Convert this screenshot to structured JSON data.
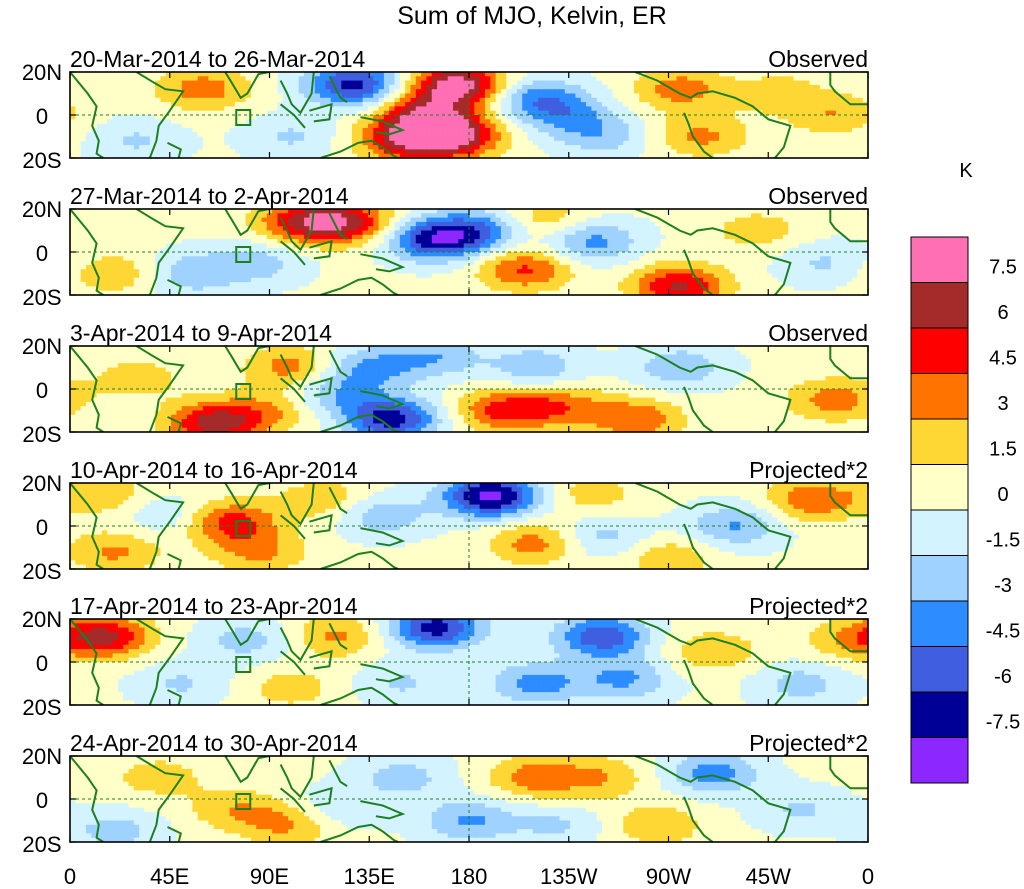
{
  "chart_data": {
    "type": "heatmap",
    "title": "Sum of MJO, Kelvin, ER",
    "colorbar": {
      "unit": "K",
      "levels": [
        "7.5",
        "6",
        "4.5",
        "3",
        "1.5",
        "0",
        "-1.5",
        "-3",
        "-4.5",
        "-6",
        "-7.5"
      ],
      "colors": [
        "#ff6fb4",
        "#a52a2a",
        "#ff0000",
        "#ff7300",
        "#ffd735",
        "#ffffc8",
        "#d2f3ff",
        "#a0d2ff",
        "#2d8cff",
        "#3f5fe0",
        "#000096",
        "#8c28ff"
      ]
    },
    "x_ticks": [
      "0",
      "45E",
      "90E",
      "135E",
      "180",
      "135W",
      "90W",
      "45W",
      "0"
    ],
    "y_ticks": [
      "20N",
      "0",
      "20S"
    ],
    "panels": [
      {
        "period": "20-Mar-2014 to 26-Mar-2014",
        "label": "Observed",
        "blobs": [
          {
            "lon": 175,
            "lat": 14,
            "v": 8.2
          },
          {
            "lon": 172,
            "lat": -10,
            "v": 7.5
          },
          {
            "lon": 160,
            "lat": 0,
            "v": 6.0
          },
          {
            "lon": 150,
            "lat": -12,
            "v": 5.0
          },
          {
            "lon": 128,
            "lat": 14,
            "v": -7.0
          },
          {
            "lon": 210,
            "lat": 8,
            "v": -4.0
          },
          {
            "lon": 225,
            "lat": 0,
            "v": -3.0
          },
          {
            "lon": 60,
            "lat": 12,
            "v": 3.5
          },
          {
            "lon": 275,
            "lat": 12,
            "v": 3.5
          },
          {
            "lon": 285,
            "lat": -10,
            "v": 3.0
          },
          {
            "lon": 345,
            "lat": 0,
            "v": 2.5
          },
          {
            "lon": 30,
            "lat": -12,
            "v": -2.0
          },
          {
            "lon": 100,
            "lat": -10,
            "v": -2.0
          },
          {
            "lon": 240,
            "lat": -10,
            "v": -2.5
          },
          {
            "lon": 320,
            "lat": 10,
            "v": 2.0
          }
        ]
      },
      {
        "period": "27-Mar-2014 to 2-Apr-2014",
        "label": "Observed",
        "blobs": [
          {
            "lon": 105,
            "lat": 14,
            "v": 5.0
          },
          {
            "lon": 125,
            "lat": 14,
            "v": 5.5
          },
          {
            "lon": 165,
            "lat": 6,
            "v": -7.0
          },
          {
            "lon": 205,
            "lat": -8,
            "v": 4.5
          },
          {
            "lon": 275,
            "lat": -16,
            "v": 6.0
          },
          {
            "lon": 55,
            "lat": -10,
            "v": -3.0
          },
          {
            "lon": 185,
            "lat": 10,
            "v": -4.0
          },
          {
            "lon": 235,
            "lat": 5,
            "v": -4.0
          },
          {
            "lon": 215,
            "lat": 15,
            "v": 2.5
          },
          {
            "lon": 310,
            "lat": 10,
            "v": 2.0
          },
          {
            "lon": 85,
            "lat": -5,
            "v": -2.5
          },
          {
            "lon": 20,
            "lat": -10,
            "v": 2.5
          },
          {
            "lon": 340,
            "lat": -5,
            "v": -2.0
          }
        ]
      },
      {
        "period": "3-Apr-2014 to 9-Apr-2014",
        "label": "Observed",
        "blobs": [
          {
            "lon": 65,
            "lat": -16,
            "v": 6.5
          },
          {
            "lon": 145,
            "lat": -14,
            "v": -7.0
          },
          {
            "lon": 195,
            "lat": -10,
            "v": 4.5
          },
          {
            "lon": 220,
            "lat": -8,
            "v": 3.5
          },
          {
            "lon": 255,
            "lat": -14,
            "v": 4.0
          },
          {
            "lon": 100,
            "lat": 10,
            "v": 3.5
          },
          {
            "lon": 135,
            "lat": 10,
            "v": -3.5
          },
          {
            "lon": 165,
            "lat": 15,
            "v": -3.0
          },
          {
            "lon": 210,
            "lat": 10,
            "v": -3.0
          },
          {
            "lon": 275,
            "lat": 10,
            "v": -3.0
          },
          {
            "lon": 345,
            "lat": -5,
            "v": 3.5
          },
          {
            "lon": 30,
            "lat": 5,
            "v": 2.0
          },
          {
            "lon": 90,
            "lat": -10,
            "v": 2.5
          },
          {
            "lon": 120,
            "lat": -2,
            "v": -3.0
          }
        ]
      },
      {
        "period": "10-Apr-2014 to 16-Apr-2014",
        "label": "Projected*2",
        "blobs": [
          {
            "lon": 190,
            "lat": 14,
            "v": -8.5
          },
          {
            "lon": 72,
            "lat": 2,
            "v": 5.0
          },
          {
            "lon": 20,
            "lat": -12,
            "v": 3.0
          },
          {
            "lon": 85,
            "lat": -12,
            "v": 3.0
          },
          {
            "lon": 115,
            "lat": 12,
            "v": 2.5
          },
          {
            "lon": 210,
            "lat": -8,
            "v": 3.5
          },
          {
            "lon": 235,
            "lat": 15,
            "v": 2.0
          },
          {
            "lon": 335,
            "lat": 12,
            "v": 4.0
          },
          {
            "lon": 140,
            "lat": 5,
            "v": -3.0
          },
          {
            "lon": 300,
            "lat": 0,
            "v": -3.5
          },
          {
            "lon": 240,
            "lat": -5,
            "v": -2.5
          },
          {
            "lon": 45,
            "lat": 5,
            "v": -2.0
          },
          {
            "lon": 270,
            "lat": -15,
            "v": 2.5
          },
          {
            "lon": 15,
            "lat": 15,
            "v": 2.5
          }
        ]
      },
      {
        "period": "17-Apr-2014 to 23-Apr-2014",
        "label": "Projected*2",
        "blobs": [
          {
            "lon": 15,
            "lat": 12,
            "v": 6.0
          },
          {
            "lon": 165,
            "lat": 16,
            "v": -7.0
          },
          {
            "lon": 240,
            "lat": 12,
            "v": -6.0
          },
          {
            "lon": 210,
            "lat": -10,
            "v": -4.0
          },
          {
            "lon": 250,
            "lat": -8,
            "v": -3.5
          },
          {
            "lon": 120,
            "lat": 12,
            "v": 3.0
          },
          {
            "lon": 80,
            "lat": 10,
            "v": -2.5
          },
          {
            "lon": 290,
            "lat": 5,
            "v": 2.5
          },
          {
            "lon": 330,
            "lat": -10,
            "v": -2.5
          },
          {
            "lon": 100,
            "lat": -12,
            "v": 2.0
          },
          {
            "lon": 150,
            "lat": -10,
            "v": -2.0
          },
          {
            "lon": 50,
            "lat": -10,
            "v": -2.0
          },
          {
            "lon": 350,
            "lat": 10,
            "v": 2.0
          }
        ]
      },
      {
        "period": "24-Apr-2014 to 30-Apr-2014",
        "label": "Projected*2",
        "blobs": [
          {
            "lon": 210,
            "lat": 10,
            "v": 3.5
          },
          {
            "lon": 100,
            "lat": -12,
            "v": 3.0
          },
          {
            "lon": 290,
            "lat": 12,
            "v": -4.0
          },
          {
            "lon": 180,
            "lat": -10,
            "v": -3.5
          },
          {
            "lon": 150,
            "lat": 10,
            "v": -2.5
          },
          {
            "lon": 240,
            "lat": 10,
            "v": 2.5
          },
          {
            "lon": 265,
            "lat": -12,
            "v": 2.5
          },
          {
            "lon": 40,
            "lat": 10,
            "v": 2.0
          },
          {
            "lon": 20,
            "lat": -15,
            "v": -2.5
          },
          {
            "lon": 330,
            "lat": -5,
            "v": -2.0
          },
          {
            "lon": 120,
            "lat": -5,
            "v": -2.0
          },
          {
            "lon": 75,
            "lat": -5,
            "v": 2.5
          },
          {
            "lon": 220,
            "lat": -12,
            "v": -2.0
          }
        ]
      }
    ]
  }
}
